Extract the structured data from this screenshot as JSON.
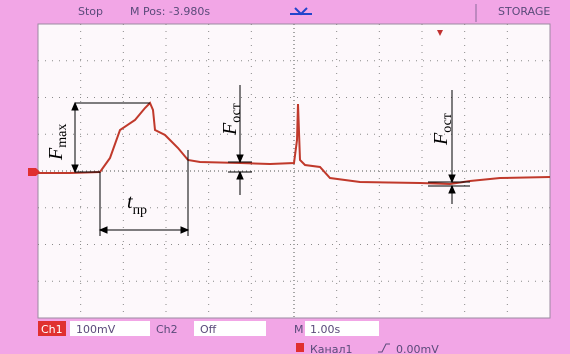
{
  "header": {
    "status": "Stop",
    "position": "M Pos: -3.980s",
    "mode": "STORAGE"
  },
  "annotations": {
    "fmax": {
      "symbol": "F",
      "subscript": "max"
    },
    "rise_time": {
      "symbol": "t",
      "subscript": "пр"
    },
    "residual_1": {
      "symbol": "F",
      "subscript": "ост"
    },
    "residual_2": {
      "symbol": "F",
      "subscript": "ост"
    }
  },
  "footer": {
    "ch1_label": "Ch1",
    "ch1_scale": "100mV",
    "ch2_label": "Ch2",
    "ch2_state": "Off",
    "time_label": "M",
    "time_scale": "1.00s",
    "trigger_source": "Канал1",
    "trigger_level": "0.00mV"
  }
}
